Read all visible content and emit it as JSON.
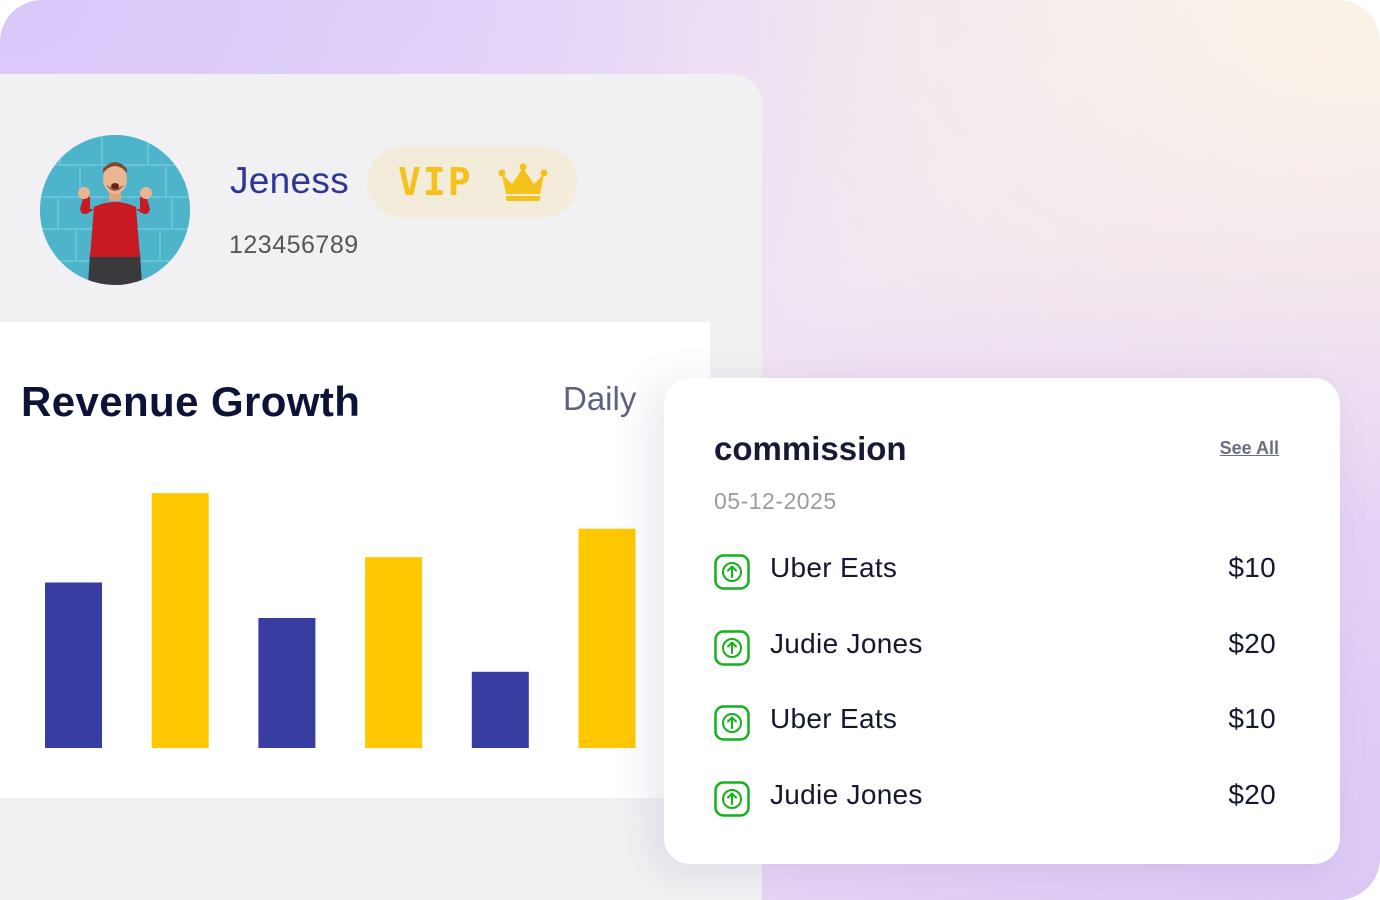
{
  "profile": {
    "name": "Jeness",
    "badge_label": "VIP",
    "badge_icon": "crown-icon",
    "user_id": "123456789",
    "avatar": "user-avatar-photo"
  },
  "chart": {
    "title": "Revenue Growth",
    "period": "Daily"
  },
  "chart_data": {
    "type": "bar",
    "title": "Revenue Growth",
    "categories": [
      "",
      "",
      "",
      "",
      "",
      ""
    ],
    "values": [
      163,
      251,
      128,
      188,
      75,
      216
    ],
    "bar_colors": [
      "#373da1",
      "#ffc800",
      "#373da1",
      "#ffc800",
      "#373da1",
      "#ffc800"
    ],
    "ylim": [
      0,
      260
    ],
    "grid": false,
    "legend": "none",
    "xlabel": "",
    "ylabel": ""
  },
  "commission": {
    "title": "commission",
    "see_all_label": "See All",
    "date": "05-12-2025",
    "transactions": [
      {
        "name": "Uber Eats",
        "amount": "$10",
        "icon": "arrow-up-icon"
      },
      {
        "name": "Judie Jones",
        "amount": "$20",
        "icon": "arrow-up-icon"
      },
      {
        "name": "Uber Eats",
        "amount": "$10",
        "icon": "arrow-up-icon"
      },
      {
        "name": "Judie Jones",
        "amount": "$20",
        "icon": "arrow-up-icon"
      }
    ]
  },
  "colors": {
    "brand_blue": "#2f3497",
    "brand_yellow": "#ffc800",
    "positive_green": "#13b21a",
    "vip_gold": "#f5c21b"
  }
}
